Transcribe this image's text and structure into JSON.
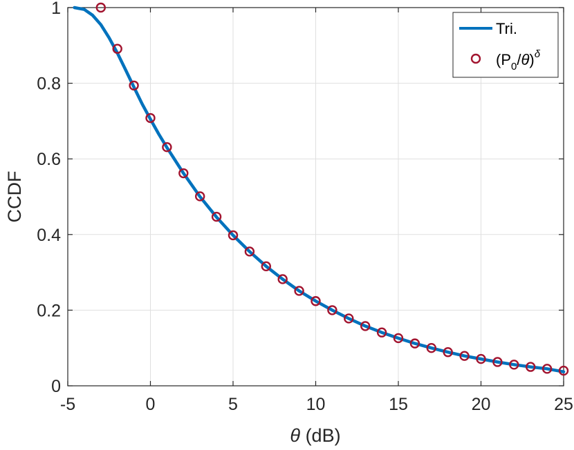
{
  "chart_data": {
    "type": "line",
    "xlabel_symbol": "θ",
    "xlabel_unit": " (dB)",
    "ylabel": "CCDF",
    "xlim": [
      -5,
      25
    ],
    "ylim": [
      0,
      1
    ],
    "xticks": [
      -5,
      0,
      5,
      10,
      15,
      20,
      25
    ],
    "yticks": [
      0,
      0.2,
      0.4,
      0.6,
      0.8,
      1
    ],
    "grid": true,
    "legend_position": "top-right",
    "series": [
      {
        "name": "Tri.",
        "style": "line",
        "color": "#0072BD",
        "x": [
          -4.6,
          -4.0,
          -3.5,
          -3.0,
          -2.5,
          -2.0,
          -1.5,
          -1.0,
          -0.5,
          0,
          0.5,
          1,
          2,
          3,
          4,
          5,
          6,
          7,
          8,
          9,
          10,
          11,
          12,
          13,
          14,
          15,
          16,
          17,
          18,
          19,
          20,
          21,
          22,
          23,
          24,
          25
        ],
        "y": [
          1.0,
          0.995,
          0.98,
          0.955,
          0.92,
          0.88,
          0.835,
          0.79,
          0.745,
          0.705,
          0.666,
          0.63,
          0.562,
          0.5,
          0.446,
          0.398,
          0.355,
          0.316,
          0.282,
          0.251,
          0.224,
          0.2,
          0.178,
          0.158,
          0.141,
          0.126,
          0.112,
          0.1,
          0.089,
          0.079,
          0.071,
          0.063,
          0.056,
          0.05,
          0.045,
          0.037
        ]
      },
      {
        "name_parts": {
          "open": "(P",
          "sub": "0",
          "middle": "/",
          "theta": "θ",
          "close": ")",
          "sup": "δ"
        },
        "style": "markers",
        "color": "#A2142F",
        "x": [
          -3,
          -2,
          -1,
          0,
          1,
          2,
          3,
          4,
          5,
          6,
          7,
          8,
          9,
          10,
          11,
          12,
          13,
          14,
          15,
          16,
          17,
          18,
          19,
          20,
          21,
          22,
          23,
          24,
          25
        ],
        "y": [
          1.0,
          0.891,
          0.794,
          0.708,
          0.631,
          0.562,
          0.501,
          0.447,
          0.398,
          0.355,
          0.316,
          0.282,
          0.251,
          0.224,
          0.2,
          0.178,
          0.158,
          0.141,
          0.126,
          0.112,
          0.1,
          0.089,
          0.079,
          0.071,
          0.063,
          0.056,
          0.05,
          0.045,
          0.04
        ]
      }
    ],
    "legend": {
      "line_label": "Tri."
    }
  }
}
